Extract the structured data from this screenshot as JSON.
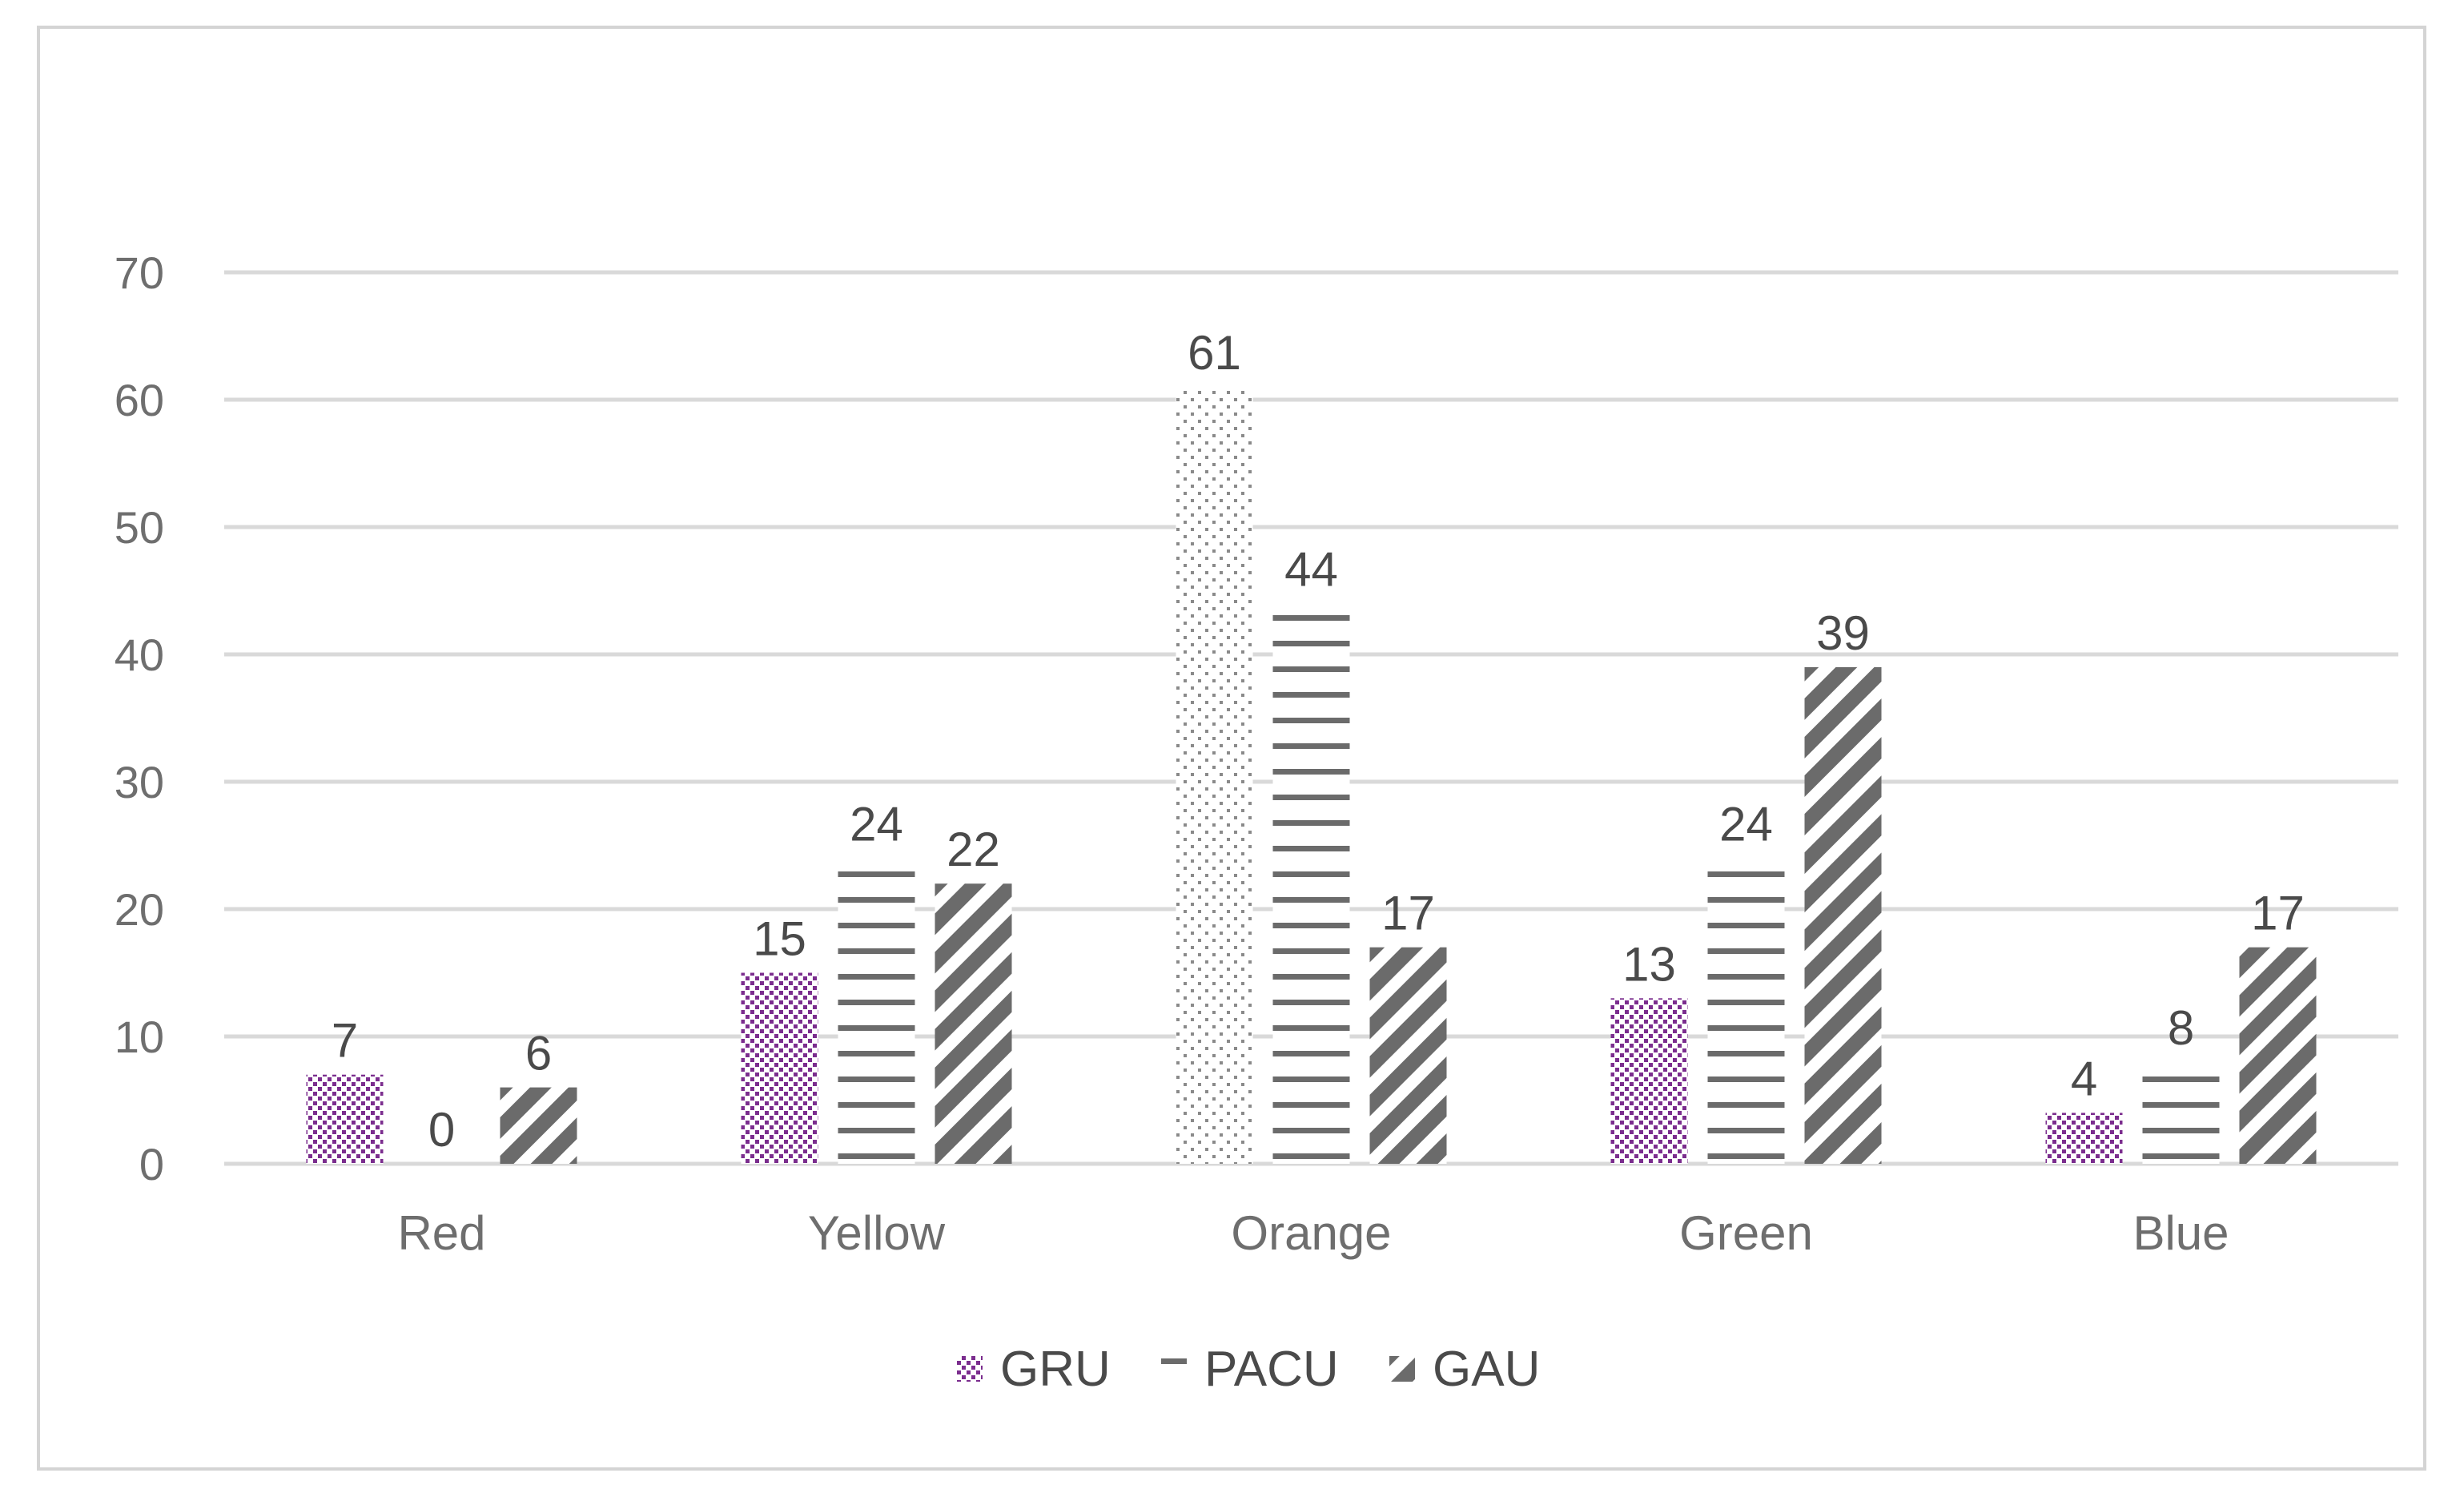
{
  "chart_data": {
    "type": "bar",
    "title": "",
    "xlabel": "",
    "ylabel": "",
    "categories": [
      "Red",
      "Yellow",
      "Orange",
      "Green",
      "Blue"
    ],
    "series": [
      {
        "name": "GRU",
        "values": [
          7,
          15,
          61,
          13,
          4
        ],
        "color": "#7b2d8e",
        "pattern": "dots"
      },
      {
        "name": "PACU",
        "values": [
          0,
          24,
          44,
          24,
          8
        ],
        "color": "#6b6b6b",
        "pattern": "horizontal-lines"
      },
      {
        "name": "GAU",
        "values": [
          6,
          22,
          17,
          39,
          17
        ],
        "color": "#6b6b6b",
        "pattern": "diagonal-stripes"
      }
    ],
    "ylim": [
      0,
      70
    ],
    "yticks": [
      0,
      10,
      20,
      30,
      40,
      50,
      60,
      70
    ],
    "grid": true,
    "legend_position": "bottom",
    "orange_gru_color": "#8a8a8a"
  }
}
